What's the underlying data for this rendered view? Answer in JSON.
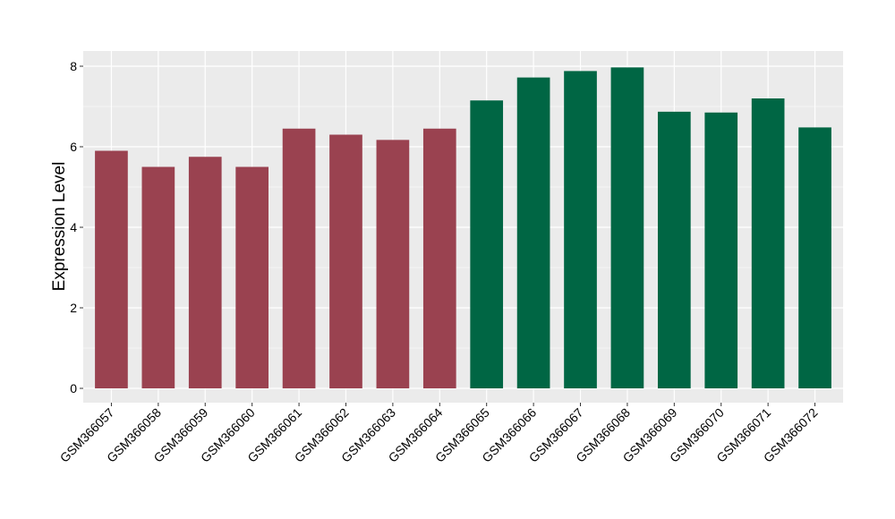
{
  "chart_data": {
    "type": "bar",
    "ylabel": "Expression Level",
    "xlabel": "",
    "ylim": [
      0,
      8.4
    ],
    "yticks": [
      0,
      2,
      4,
      6,
      8
    ],
    "grid": true,
    "colors": {
      "group1": "#9a4250",
      "group2": "#006644",
      "panel": "#ebebeb",
      "grid": "#ffffff"
    },
    "categories": [
      "GSM366057",
      "GSM366058",
      "GSM366059",
      "GSM366060",
      "GSM366061",
      "GSM366062",
      "GSM366063",
      "GSM366064",
      "GSM366065",
      "GSM366066",
      "GSM366067",
      "GSM366068",
      "GSM366069",
      "GSM366070",
      "GSM366071",
      "GSM366072"
    ],
    "values": [
      5.9,
      5.5,
      5.75,
      5.5,
      6.45,
      6.3,
      6.17,
      6.45,
      7.15,
      7.72,
      7.88,
      7.97,
      6.87,
      6.85,
      7.2,
      6.48
    ],
    "bar_groups": [
      1,
      1,
      1,
      1,
      1,
      1,
      1,
      1,
      2,
      2,
      2,
      2,
      2,
      2,
      2,
      2
    ]
  }
}
